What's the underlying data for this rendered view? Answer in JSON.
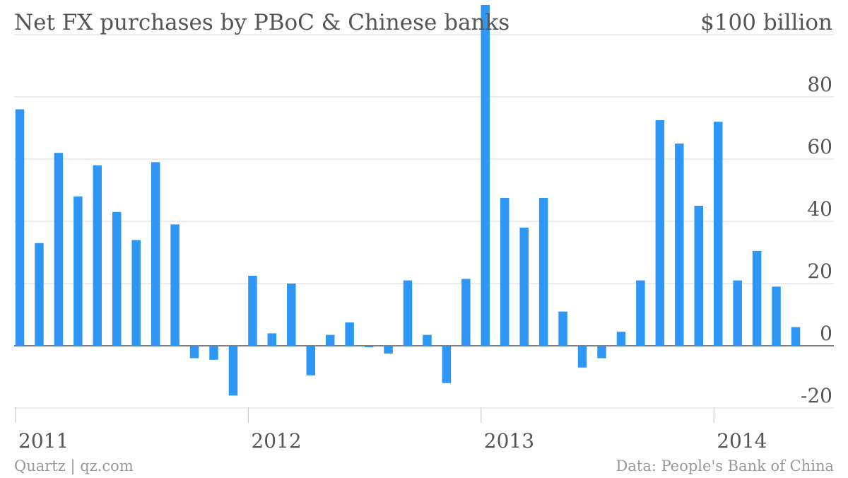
{
  "chart_data": {
    "type": "bar",
    "title": "Net FX purchases by PBoC & Chinese banks",
    "unit_label": "$100 billion",
    "y_ticks": [
      -20,
      0,
      20,
      40,
      60,
      80
    ],
    "ylim": [
      -20,
      110
    ],
    "grid": true,
    "x_ticks": [
      "2011",
      "2012",
      "2013",
      "2014"
    ],
    "x_tick_index": [
      0,
      12,
      24,
      36
    ],
    "categories": [
      "2011-01",
      "2011-02",
      "2011-03",
      "2011-04",
      "2011-05",
      "2011-06",
      "2011-07",
      "2011-08",
      "2011-09",
      "2011-10",
      "2011-11",
      "2011-12",
      "2012-01",
      "2012-02",
      "2012-03",
      "2012-04",
      "2012-05",
      "2012-06",
      "2012-07",
      "2012-08",
      "2012-09",
      "2012-10",
      "2012-11",
      "2012-12",
      "2013-01",
      "2013-02",
      "2013-03",
      "2013-04",
      "2013-05",
      "2013-06",
      "2013-07",
      "2013-08",
      "2013-09",
      "2013-10",
      "2013-11",
      "2013-12",
      "2014-01",
      "2014-02",
      "2014-03",
      "2014-04",
      "2014-05"
    ],
    "values": [
      76,
      33,
      62,
      48,
      58,
      43,
      34,
      59,
      39,
      -4,
      -4.5,
      -16,
      22.5,
      4,
      20,
      -9.5,
      3.5,
      7.5,
      -0.5,
      -2.5,
      21,
      3.5,
      -12,
      21.5,
      110,
      47.5,
      38,
      47.5,
      11,
      -7,
      -4,
      4.5,
      21,
      72.5,
      65,
      45,
      72,
      21,
      30.5,
      19,
      6
    ],
    "color": "#2e97f5"
  },
  "footer": {
    "left": "Quartz | qz.com",
    "right": "Data: People's Bank of China"
  }
}
